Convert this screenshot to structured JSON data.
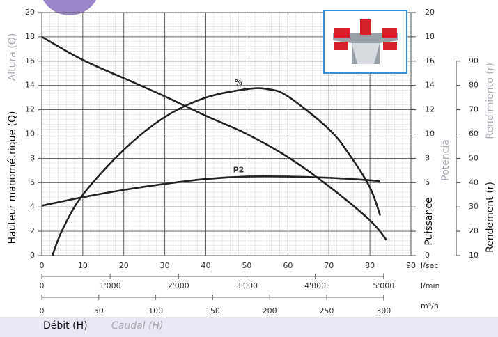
{
  "chart_data": {
    "type": "line",
    "xlabel": "Débit (H)",
    "xlabel_es": "Caudal (H)",
    "ylabel": "Hauteur manométrique (Q)",
    "ylabel_es": "Altura (Q)",
    "y2label": "Puissance",
    "y2label_es": "Potencia",
    "y3label": "Rendement (r)",
    "y3label_es": "Rendimiento (r)",
    "xunit": "l/sec",
    "x2unit": "l/min",
    "x3unit": "m³/h",
    "xlim": [
      0,
      90
    ],
    "xticks": [
      0,
      10,
      20,
      30,
      40,
      50,
      60,
      70,
      80,
      90
    ],
    "x2lim": [
      0,
      5400
    ],
    "x2ticks": [
      0,
      {
        "value": 1000,
        "label": "1'000"
      },
      {
        "value": 2000,
        "label": "2'000"
      },
      {
        "value": 3000,
        "label": "3'000"
      },
      {
        "value": 4000,
        "label": "4'000"
      },
      {
        "value": 5000,
        "label": "5'000"
      }
    ],
    "x3lim": [
      0,
      324
    ],
    "x3ticks": [
      0,
      50,
      100,
      150,
      200,
      250,
      300
    ],
    "ylim": [
      0,
      20
    ],
    "yticks": [
      0,
      2,
      4,
      6,
      8,
      10,
      12,
      14,
      16,
      18,
      20
    ],
    "y2lim": [
      0,
      20
    ],
    "y2ticks": [
      0,
      2,
      4,
      6,
      8,
      10,
      12,
      14,
      16,
      18,
      20
    ],
    "y3lim": [
      10,
      110
    ],
    "y3ticks": [
      10,
      20,
      30,
      40,
      50,
      60,
      70,
      80,
      90
    ],
    "grid": true,
    "series": [
      {
        "color": "#222222",
        "axis": "y",
        "x": [
          0,
          10,
          20,
          30,
          40,
          50,
          60,
          70,
          80,
          84
        ],
        "values": [
          18,
          16.1,
          14.6,
          13.1,
          11.5,
          10.0,
          8.1,
          5.7,
          2.9,
          1.3
        ]
      },
      {
        "name": "%",
        "color": "#222222",
        "axis": "y3",
        "x": [
          2.6,
          5,
          10,
          20,
          30,
          40,
          50,
          55,
          60,
          70,
          75,
          80,
          82.5
        ],
        "values": [
          10,
          20.5,
          35,
          53.5,
          67,
          75,
          78.5,
          78.5,
          75.5,
          62,
          51.5,
          38,
          26.5
        ]
      },
      {
        "name": "P2",
        "color": "#222222",
        "axis": "y2",
        "x": [
          0,
          10,
          20,
          30,
          40,
          50,
          60,
          70,
          80,
          82.5
        ],
        "values": [
          4.1,
          4.8,
          5.4,
          5.9,
          6.3,
          6.5,
          6.5,
          6.4,
          6.2,
          6.1
        ]
      }
    ]
  }
}
